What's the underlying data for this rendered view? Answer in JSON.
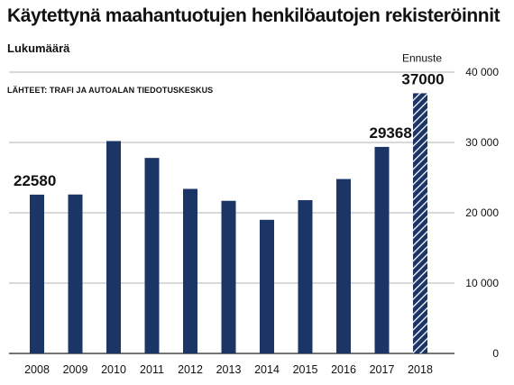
{
  "title": "Käytettynä maahantuotujen henkilöautojen rekisteröinnit",
  "subtitle": "Lukumäärä",
  "source": "LÄHTEET: TRAFI JA AUTOALAN TIEDOTUSKESKUS",
  "colors": {
    "bar": "#1b3566",
    "grid": "#9a9a9a",
    "forecast_stripe": "#ffffff"
  },
  "chart_data": {
    "type": "bar",
    "title": "Käytettynä maahantuotujen henkilöautojen rekisteröinnit",
    "ylabel": "Lukumäärä",
    "xlabel": "",
    "categories": [
      "2008",
      "2009",
      "2010",
      "2011",
      "2012",
      "2013",
      "2014",
      "2015",
      "2016",
      "2017",
      "2018"
    ],
    "values": [
      22580,
      22600,
      30200,
      27800,
      23400,
      21700,
      19000,
      21800,
      24800,
      29368,
      37000
    ],
    "ylim": [
      0,
      40000
    ],
    "yticks": [
      0,
      10000,
      20000,
      30000,
      40000
    ],
    "ytick_labels": [
      "0",
      "10 000",
      "20 000",
      "30 000",
      "40 000"
    ],
    "grid": true,
    "y_axis_side": "right",
    "data_labels": [
      {
        "index": 0,
        "text": "22580"
      },
      {
        "index": 9,
        "text": "29368"
      },
      {
        "index": 10,
        "text": "37000"
      }
    ],
    "forecast": {
      "index": 10,
      "label": "Ennuste",
      "pattern": "diagonal-hatch"
    }
  }
}
